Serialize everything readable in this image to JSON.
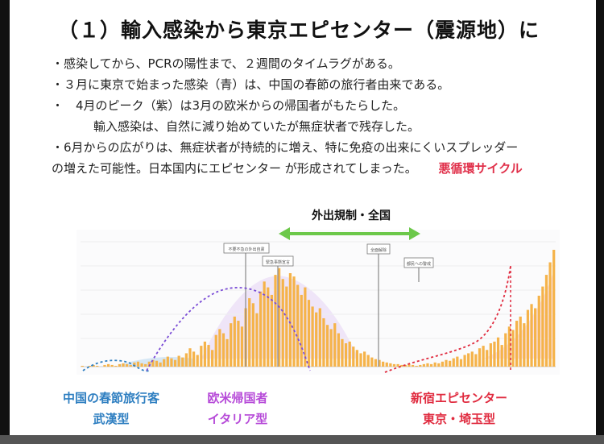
{
  "title": "（１）輸入感染から東京エピセンター（震源地）に",
  "bullets": {
    "b1": "・感染してから、PCRの陽性まで、２週間のタイムラグがある。",
    "b2": "・３月に東京で始まった感染（青）は、中国の春節の旅行者由来である。",
    "b3": "・　4月のピーク（紫）は3月の欧米からの帰国者がもたらした。",
    "b4": "輸入感染は、自然に減り始めていたが無症状者で残存した。",
    "b5": "・6月からの広がりは、無症状者が持続的に増え、特に免疫の出来にくいスプレッダー",
    "b6": "の増えた可能性。日本国内にエピセンター が形成されてしまった。",
    "b6_red": "悪循環サイクル"
  },
  "arrow_label": "外出規制・全国",
  "annotation_boxes": [
    "不要不急の外出自粛",
    "緊急事態宣言",
    "全面解除",
    "都民への警戒"
  ],
  "labels": {
    "china_1": "中国の春節旅行客",
    "china_2": "武漢型",
    "euro_1": "欧米帰国者",
    "euro_2": "イタリア型",
    "tokyo_1": "新宿エピセンター",
    "tokyo_2": "東京・埼玉型"
  },
  "colors": {
    "bars": "#f5b34a",
    "china_curve": "#2f7fc1",
    "euro_curve": "#7b4dd6",
    "tokyo_curve": "#e02b3f",
    "arrow": "#6cc84a"
  },
  "chart_data": {
    "type": "bar",
    "title": "",
    "xlabel": "",
    "ylabel": "",
    "daily_cases": [
      1,
      0,
      1,
      2,
      1,
      0,
      2,
      3,
      2,
      1,
      3,
      4,
      3,
      2,
      5,
      6,
      4,
      3,
      6,
      8,
      7,
      5,
      9,
      12,
      10,
      8,
      13,
      11,
      16,
      22,
      18,
      14,
      25,
      30,
      26,
      20,
      38,
      45,
      40,
      33,
      52,
      60,
      55,
      48,
      70,
      82,
      76,
      64,
      90,
      102,
      95,
      86,
      110,
      118,
      105,
      96,
      112,
      108,
      98,
      86,
      95,
      80,
      72,
      65,
      70,
      58,
      50,
      45,
      52,
      40,
      33,
      28,
      30,
      24,
      20,
      16,
      18,
      14,
      11,
      9,
      8,
      6,
      5,
      4,
      3,
      3,
      2,
      2,
      3,
      2,
      1,
      2,
      3,
      4,
      3,
      5,
      4,
      6,
      8,
      7,
      10,
      12,
      9,
      14,
      16,
      18,
      15,
      22,
      25,
      20,
      28,
      30,
      35,
      26,
      40,
      48,
      44,
      55,
      60,
      52,
      68,
      75,
      70,
      85,
      96,
      110,
      125,
      140
    ]
  }
}
